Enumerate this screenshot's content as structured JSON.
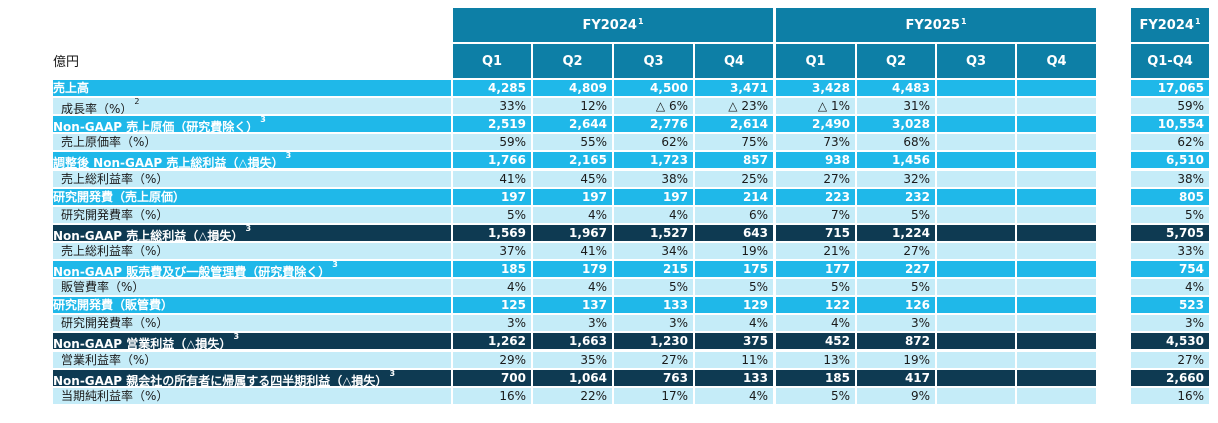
{
  "unit_label": "億円",
  "headers": {
    "fy2024": "FY2024",
    "fy2025": "FY2025",
    "fy_total": "FY2024",
    "fy_note": "1",
    "quarters": [
      "Q1",
      "Q2",
      "Q3",
      "Q4",
      "Q1",
      "Q2",
      "Q3",
      "Q4"
    ],
    "total_col": "Q1-Q4"
  },
  "colors": {
    "header_bg": "#0d7fa6",
    "major_row": "#1fb8e9",
    "dark_row": "#0e3a52",
    "sub_row": "#c5ecf8"
  },
  "rows": [
    {
      "label": "売上高",
      "note": "",
      "style": "major",
      "values": [
        "4,285",
        "4,809",
        "4,500",
        "3,471",
        "3,428",
        "4,483",
        "",
        ""
      ],
      "total": "17,065"
    },
    {
      "label": "成長率（%）",
      "note": "2",
      "style": "sub",
      "values": [
        "33%",
        "12%",
        "△ 6%",
        "△ 23%",
        "△ 1%",
        "31%",
        "",
        ""
      ],
      "total": "59%"
    },
    {
      "label": "Non-GAAP 売上原価（研究費除く）",
      "note": "3",
      "style": "major",
      "values": [
        "2,519",
        "2,644",
        "2,776",
        "2,614",
        "2,490",
        "3,028",
        "",
        ""
      ],
      "total": "10,554"
    },
    {
      "label": "売上原価率（%）",
      "note": "",
      "style": "sub",
      "values": [
        "59%",
        "55%",
        "62%",
        "75%",
        "73%",
        "68%",
        "",
        ""
      ],
      "total": "62%"
    },
    {
      "label": "調整後 Non-GAAP 売上総利益（△損失）",
      "note": "3",
      "style": "major",
      "values": [
        "1,766",
        "2,165",
        "1,723",
        "857",
        "938",
        "1,456",
        "",
        ""
      ],
      "total": "6,510"
    },
    {
      "label": "売上総利益率（%）",
      "note": "",
      "style": "sub",
      "values": [
        "41%",
        "45%",
        "38%",
        "25%",
        "27%",
        "32%",
        "",
        ""
      ],
      "total": "38%"
    },
    {
      "label": "研究開発費（売上原価）",
      "note": "",
      "style": "major",
      "values": [
        "197",
        "197",
        "197",
        "214",
        "223",
        "232",
        "",
        ""
      ],
      "total": "805"
    },
    {
      "label": "研究開発費率（%）",
      "note": "",
      "style": "sub",
      "values": [
        "5%",
        "4%",
        "4%",
        "6%",
        "7%",
        "5%",
        "",
        ""
      ],
      "total": "5%"
    },
    {
      "label": "Non-GAAP 売上総利益（△損失）",
      "note": "3",
      "style": "dark",
      "values": [
        "1,569",
        "1,967",
        "1,527",
        "643",
        "715",
        "1,224",
        "",
        ""
      ],
      "total": "5,705"
    },
    {
      "label": "売上総利益率（%）",
      "note": "",
      "style": "sub",
      "values": [
        "37%",
        "41%",
        "34%",
        "19%",
        "21%",
        "27%",
        "",
        ""
      ],
      "total": "33%"
    },
    {
      "label": "Non-GAAP 販売費及び一般管理費（研究費除く）",
      "note": "3",
      "style": "major",
      "values": [
        "185",
        "179",
        "215",
        "175",
        "177",
        "227",
        "",
        ""
      ],
      "total": "754"
    },
    {
      "label": "販管費率（%）",
      "note": "",
      "style": "sub",
      "values": [
        "4%",
        "4%",
        "5%",
        "5%",
        "5%",
        "5%",
        "",
        ""
      ],
      "total": "4%"
    },
    {
      "label": "研究開発費（販管費）",
      "note": "",
      "style": "major",
      "values": [
        "125",
        "137",
        "133",
        "129",
        "122",
        "126",
        "",
        ""
      ],
      "total": "523"
    },
    {
      "label": "研究開発費率（%）",
      "note": "",
      "style": "sub",
      "values": [
        "3%",
        "3%",
        "3%",
        "4%",
        "4%",
        "3%",
        "",
        ""
      ],
      "total": "3%"
    },
    {
      "label": "Non-GAAP 営業利益（△損失）",
      "note": "3",
      "style": "dark",
      "values": [
        "1,262",
        "1,663",
        "1,230",
        "375",
        "452",
        "872",
        "",
        ""
      ],
      "total": "4,530"
    },
    {
      "label": "営業利益率（%）",
      "note": "",
      "style": "sub",
      "values": [
        "29%",
        "35%",
        "27%",
        "11%",
        "13%",
        "19%",
        "",
        ""
      ],
      "total": "27%"
    },
    {
      "label": "Non-GAAP 親会社の所有者に帰属する四半期利益（△損失）",
      "note": "3",
      "style": "dark",
      "values": [
        "700",
        "1,064",
        "763",
        "133",
        "185",
        "417",
        "",
        ""
      ],
      "total": "2,660"
    },
    {
      "label": "当期純利益率（%）",
      "note": "",
      "style": "sub",
      "values": [
        "16%",
        "22%",
        "17%",
        "4%",
        "5%",
        "9%",
        "",
        ""
      ],
      "total": "16%"
    }
  ]
}
